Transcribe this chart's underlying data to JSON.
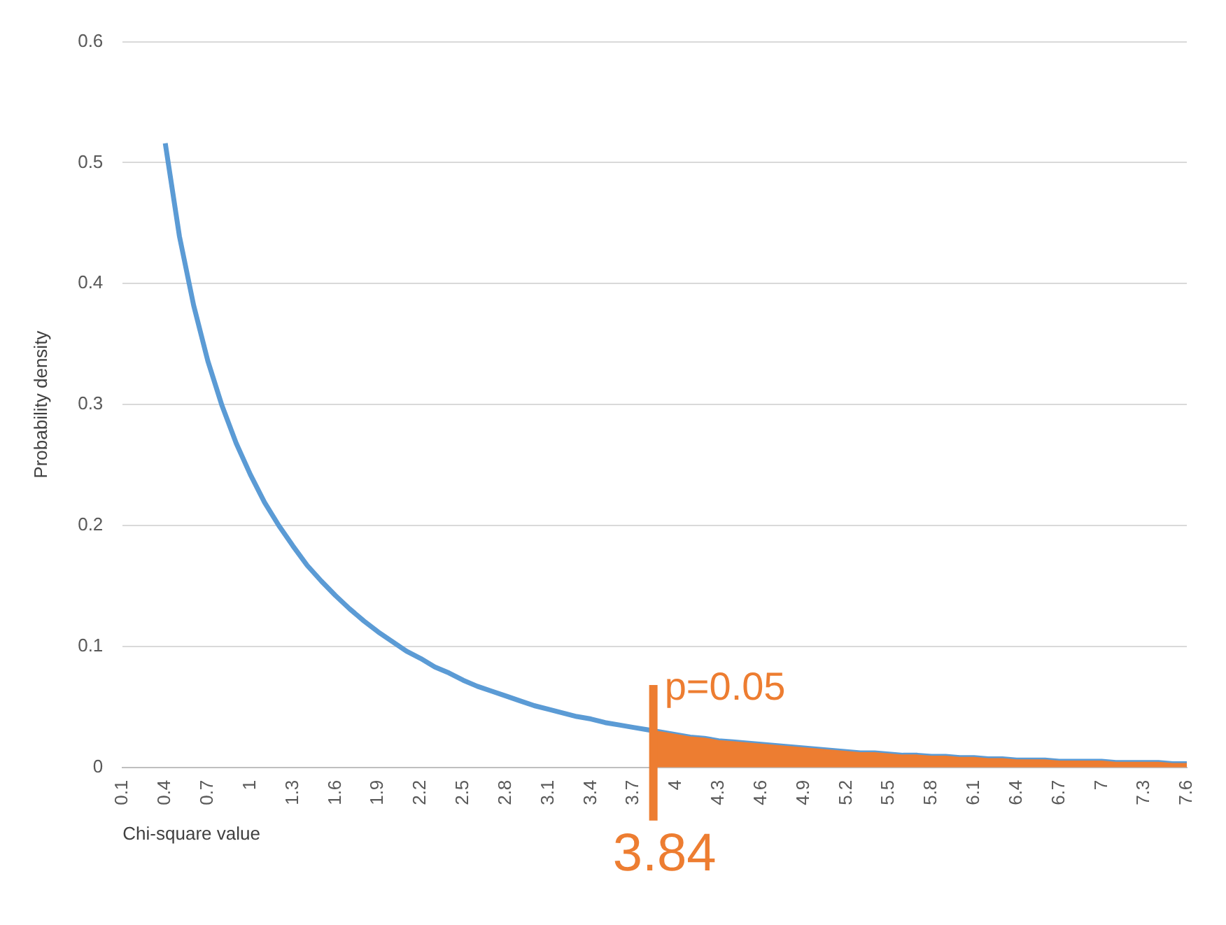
{
  "chart_data": {
    "type": "line",
    "xlabel": "Chi-square value",
    "ylabel": "Probability density",
    "x": [
      0.4,
      0.5,
      0.6,
      0.7,
      0.8,
      0.9,
      1.0,
      1.1,
      1.2,
      1.3,
      1.4,
      1.5,
      1.6,
      1.7,
      1.8,
      1.9,
      2.0,
      2.1,
      2.2,
      2.3,
      2.4,
      2.5,
      2.6,
      2.7,
      2.8,
      2.9,
      3.0,
      3.1,
      3.2,
      3.3,
      3.4,
      3.5,
      3.6,
      3.7,
      3.8,
      3.9,
      4.0,
      4.1,
      4.2,
      4.3,
      4.4,
      4.5,
      4.6,
      4.7,
      4.8,
      4.9,
      5.0,
      5.1,
      5.2,
      5.3,
      5.4,
      5.5,
      5.6,
      5.7,
      5.8,
      5.9,
      6.0,
      6.1,
      6.2,
      6.3,
      6.4,
      6.5,
      6.6,
      6.7,
      6.8,
      6.9,
      7.0,
      7.1,
      7.2,
      7.3,
      7.4,
      7.5,
      7.6
    ],
    "series": [
      {
        "type": "area",
        "color": "#ed7d31",
        "x": [
          3.84,
          3.9,
          4.0,
          4.1,
          4.2,
          4.3,
          4.4,
          4.5,
          4.6,
          4.7,
          4.8,
          4.9,
          5.0,
          5.1,
          5.2,
          5.3,
          5.4,
          5.5,
          5.6,
          5.7,
          5.8,
          5.9,
          6.0,
          6.1,
          6.2,
          6.3,
          6.4,
          6.5,
          6.6,
          6.7,
          6.8,
          6.9,
          7.0,
          7.1,
          7.2,
          7.3,
          7.4,
          7.5,
          7.6
        ],
        "values": [
          0.03,
          0.029,
          0.027,
          0.025,
          0.024,
          0.022,
          0.021,
          0.02,
          0.019,
          0.018,
          0.017,
          0.016,
          0.015,
          0.014,
          0.013,
          0.012,
          0.012,
          0.011,
          0.01,
          0.01,
          0.009,
          0.009,
          0.008,
          0.008,
          0.007,
          0.007,
          0.006,
          0.006,
          0.006,
          0.005,
          0.005,
          0.005,
          0.005,
          0.004,
          0.004,
          0.004,
          0.004,
          0.003,
          0.003
        ]
      },
      {
        "color": "#5b9bd5",
        "values": [
          0.516,
          0.439,
          0.382,
          0.336,
          0.299,
          0.268,
          0.242,
          0.219,
          0.2,
          0.183,
          0.167,
          0.154,
          0.142,
          0.131,
          0.121,
          0.112,
          0.104,
          0.096,
          0.09,
          0.083,
          0.078,
          0.072,
          0.067,
          0.063,
          0.059,
          0.055,
          0.051,
          0.048,
          0.045,
          0.042,
          0.04,
          0.037,
          0.035,
          0.033,
          0.031,
          0.029,
          0.027,
          0.025,
          0.024,
          0.022,
          0.021,
          0.02,
          0.019,
          0.018,
          0.017,
          0.016,
          0.015,
          0.014,
          0.013,
          0.012,
          0.012,
          0.011,
          0.01,
          0.01,
          0.009,
          0.009,
          0.008,
          0.008,
          0.007,
          0.007,
          0.006,
          0.006,
          0.006,
          0.005,
          0.005,
          0.005,
          0.005,
          0.004,
          0.004,
          0.004,
          0.004,
          0.003,
          0.003
        ]
      }
    ],
    "xlim": [
      0.1,
      7.6
    ],
    "xticks": [
      0.1,
      0.4,
      0.7,
      1,
      1.3,
      1.6,
      1.9,
      2.2,
      2.5,
      2.8,
      3.1,
      3.4,
      3.7,
      4,
      4.3,
      4.6,
      4.9,
      5.2,
      5.5,
      5.8,
      6.1,
      6.4,
      6.7,
      7,
      7.3,
      7.6
    ],
    "ylim": [
      0,
      0.6
    ],
    "yticks": [
      0,
      0.1,
      0.2,
      0.3,
      0.4,
      0.5,
      0.6
    ],
    "grid": "y",
    "legend": false,
    "marker": "none",
    "ref_lines": [
      {
        "axis": "x",
        "value": 3.84,
        "label": "3.84",
        "color": "#ed7d31"
      }
    ],
    "annotations": [
      {
        "text": "p=0.05",
        "x": 3.84,
        "y": 0.05
      }
    ]
  }
}
